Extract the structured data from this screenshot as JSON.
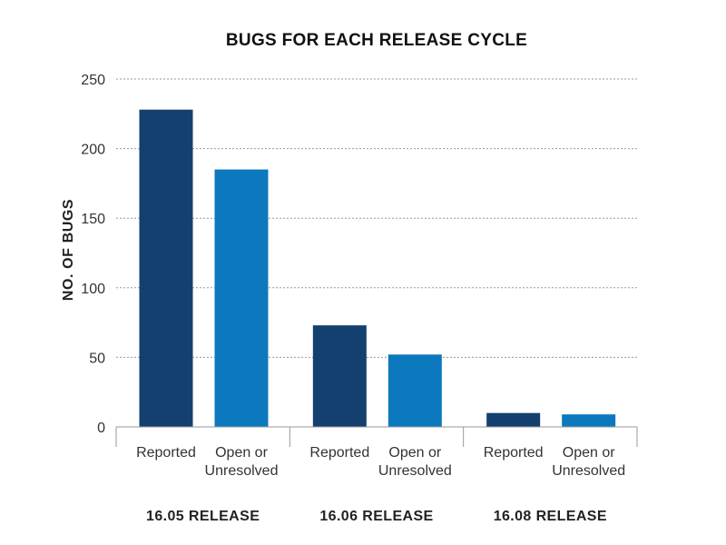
{
  "chart_data": {
    "type": "bar",
    "title": "BUGS FOR EACH RELEASE CYCLE",
    "ylabel": "NO. OF BUGS",
    "xlabel": "",
    "ylim": [
      0,
      250
    ],
    "yticks": [
      0,
      50,
      100,
      150,
      200,
      250
    ],
    "grid": true,
    "categories": [
      "Reported",
      "Open or\nUnresolved"
    ],
    "groups": [
      {
        "name": "16.05 RELEASE",
        "bars": [
          {
            "label": "Reported",
            "value": 228,
            "color": "#13406f"
          },
          {
            "label": "Open or\nUnresolved",
            "value": 185,
            "color": "#0c78bd"
          }
        ]
      },
      {
        "name": "16.06 RELEASE",
        "bars": [
          {
            "label": "Reported",
            "value": 73,
            "color": "#13406f"
          },
          {
            "label": "Open or\nUnresolved",
            "value": 52,
            "color": "#0c78bd"
          }
        ]
      },
      {
        "name": "16.08 RELEASE",
        "bars": [
          {
            "label": "Reported",
            "value": 10,
            "color": "#13406f"
          },
          {
            "label": "Open or\nUnresolved",
            "value": 9,
            "color": "#0c78bd"
          }
        ]
      }
    ]
  }
}
